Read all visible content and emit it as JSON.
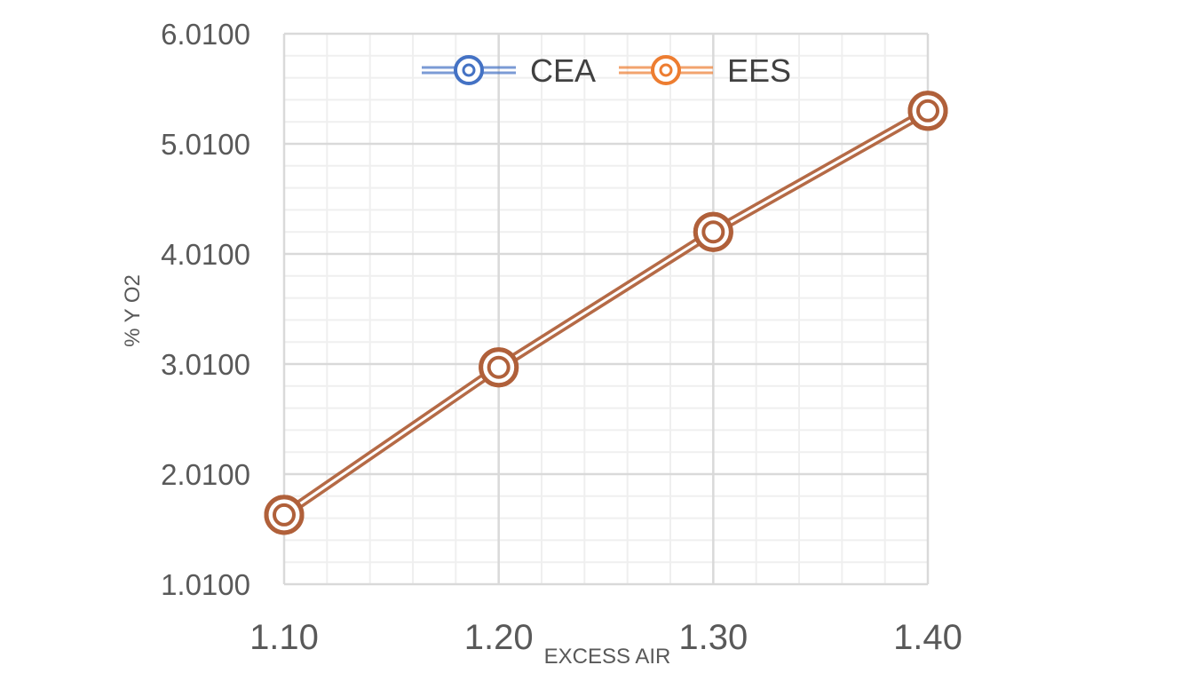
{
  "chart_data": {
    "type": "line",
    "x": [
      1.1,
      1.2,
      1.3,
      1.4
    ],
    "x_tick_labels": [
      "1.10",
      "1.20",
      "1.30",
      "1.40"
    ],
    "y_tick_labels": [
      "1.0100",
      "2.0100",
      "3.0100",
      "4.0100",
      "5.0100",
      "6.0100"
    ],
    "xlim": [
      1.1,
      1.4
    ],
    "ylim": [
      1.01,
      6.01
    ],
    "xlabel": "EXCESS AIR",
    "ylabel": "% Y O2",
    "grid": true,
    "legend_position": "top-center",
    "series": [
      {
        "name": "CEA",
        "values": [
          1.64,
          2.98,
          4.21,
          5.31
        ],
        "color": "#4472c4"
      },
      {
        "name": "EES",
        "values": [
          1.64,
          2.98,
          4.21,
          5.31
        ],
        "color": "#ed7d31"
      }
    ],
    "overlay_color": "#b0603a"
  }
}
